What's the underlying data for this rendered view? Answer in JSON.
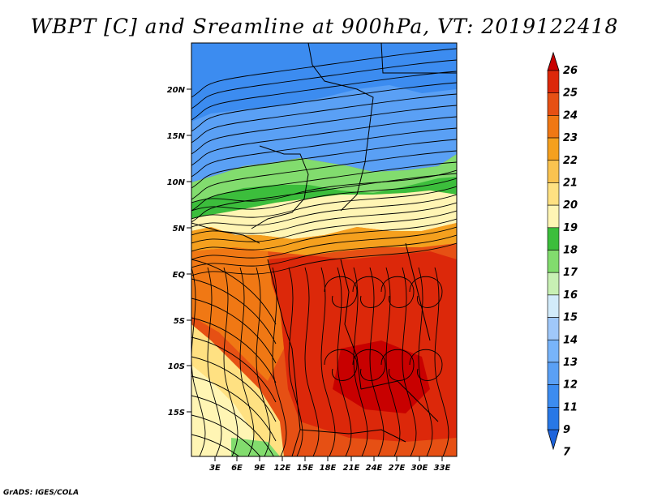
{
  "title": "WBPT [C] and Sreamline at 900hPa, VT: 2019122418",
  "credit": "GrADS: IGES/COLA",
  "map": {
    "lat_ticks": [
      "20N",
      "15N",
      "10N",
      "5N",
      "EQ",
      "5S",
      "10S",
      "15S"
    ],
    "lon_ticks": [
      "3E",
      "6E",
      "9E",
      "12E",
      "15E",
      "18E",
      "21E",
      "24E",
      "27E",
      "30E",
      "33E"
    ],
    "field": "WBPT",
    "units": "C",
    "level": "900hPa",
    "valid_time": "2019122418"
  },
  "colorbar": {
    "labels": [
      "7",
      "9",
      "11",
      "12",
      "13",
      "14",
      "15",
      "16",
      "17",
      "18",
      "19",
      "20",
      "21",
      "22",
      "23",
      "24",
      "25",
      "26"
    ],
    "colors": [
      "#1e64dc",
      "#2878e6",
      "#3c8cf0",
      "#5aa0f5",
      "#78b4fa",
      "#a0c8fa",
      "#d2ebfa",
      "#c8f0b4",
      "#82dc6e",
      "#3cbe3c",
      "#fff5b4",
      "#ffe182",
      "#fac350",
      "#f5a01e",
      "#f07814",
      "#e65014",
      "#dc280a",
      "#c80000"
    ]
  }
}
